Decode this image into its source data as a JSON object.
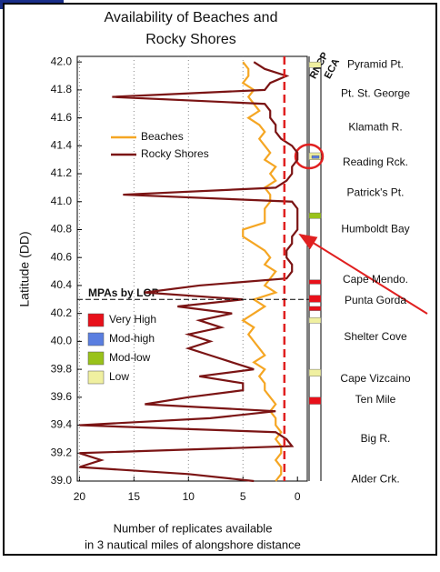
{
  "chart_data": {
    "type": "line",
    "title": [
      "Availability of Beaches and",
      "Rocky Shores"
    ],
    "y_label": "Latitude (DD)",
    "x_label": [
      "Number of replicates available",
      "in 3 nautical miles of alongshore distance"
    ],
    "xlim": [
      20.2,
      -0.9
    ],
    "ylim": [
      39.0,
      42.04
    ],
    "xticks": [
      20,
      15,
      10,
      5,
      0
    ],
    "yticks": [
      {
        "value": 42.0,
        "label": "42.0"
      },
      41.8,
      41.6,
      41.4,
      41.2,
      {
        "value": 41.0,
        "label": "41.0"
      },
      40.8,
      40.6,
      40.4,
      40.2,
      {
        "value": 40.0,
        "label": "40.0"
      },
      39.8,
      39.6,
      39.4,
      39.2,
      {
        "value": 39.0,
        "label": "39.0"
      }
    ],
    "grid": true,
    "x": [
      42.0,
      41.95,
      41.9,
      41.85,
      41.8,
      41.75,
      41.7,
      41.65,
      41.6,
      41.55,
      41.5,
      41.45,
      41.4,
      41.35,
      41.3,
      41.25,
      41.2,
      41.15,
      41.1,
      41.05,
      41.0,
      40.95,
      40.9,
      40.85,
      40.8,
      40.75,
      40.7,
      40.65,
      40.6,
      40.55,
      40.5,
      40.45,
      40.4,
      40.35,
      40.3,
      40.25,
      40.2,
      40.15,
      40.1,
      40.05,
      40.0,
      39.95,
      39.9,
      39.85,
      39.8,
      39.75,
      39.7,
      39.65,
      39.6,
      39.55,
      39.5,
      39.45,
      39.4,
      39.35,
      39.3,
      39.25,
      39.2,
      39.15,
      39.1,
      39.05,
      39.0
    ],
    "series": [
      {
        "name": "Beaches",
        "color": "#f5a623",
        "values": [
          5,
          4.5,
          4.5,
          5,
          4,
          4.5,
          4,
          3.5,
          4.5,
          3.5,
          3,
          3.5,
          3,
          2.5,
          3,
          2,
          2.5,
          2,
          3,
          2.5,
          2.5,
          3,
          3,
          3,
          5,
          5,
          4,
          3,
          2.5,
          3,
          2,
          2.5,
          3,
          2,
          4,
          3,
          4,
          5,
          4,
          4.5,
          4,
          3.5,
          3,
          4,
          3,
          3.5,
          3,
          3,
          2.5,
          2,
          2.5,
          2,
          2,
          1.5,
          2,
          1.5,
          1.5,
          2,
          1.5,
          1.5,
          2
        ]
      },
      {
        "name": "Rocky Shores",
        "color": "#7b1414",
        "values": [
          4,
          3,
          1,
          2.5,
          3,
          17,
          3,
          2.5,
          2.5,
          2,
          2,
          1.5,
          0.5,
          0,
          0,
          0.5,
          0.5,
          1,
          2,
          16,
          0.5,
          0,
          0,
          0,
          0,
          0.5,
          0.5,
          1,
          1,
          0.5,
          0.5,
          1,
          9,
          14,
          5,
          11,
          6,
          9,
          7,
          10,
          8,
          10,
          8,
          6,
          4,
          9,
          5,
          5,
          10,
          14,
          2,
          8,
          20,
          2,
          1,
          0.5,
          20,
          18,
          20,
          10,
          4
        ]
      }
    ],
    "reference_line": {
      "value": 1.2,
      "color": "#e02020"
    },
    "divider_lat": 40.3,
    "column_labels": [
      "RNCP",
      "ECA"
    ],
    "mpa_legend_title": "MPAs by LOP",
    "mpa_levels": [
      {
        "name": "Very High",
        "color": "#e8101a"
      },
      {
        "name": "Mod-high",
        "color": "#5a7ee0"
      },
      {
        "name": "Mod-low",
        "color": "#99c21a"
      },
      {
        "name": "Low",
        "color": "#f0f0a0"
      }
    ],
    "mpas": [
      {
        "level": "Low",
        "top": 42.0,
        "bottom": 41.96
      },
      {
        "level": "Low",
        "top": 41.35,
        "bottom": 41.3
      },
      {
        "level": "Mod-high",
        "top": 41.33,
        "bottom": 41.31
      },
      {
        "level": "Mod-low",
        "top": 40.92,
        "bottom": 40.88
      },
      {
        "level": "Very High",
        "top": 40.44,
        "bottom": 40.41
      },
      {
        "level": "Very High",
        "top": 40.33,
        "bottom": 40.28
      },
      {
        "level": "Very High",
        "top": 40.25,
        "bottom": 40.22
      },
      {
        "level": "Low",
        "top": 40.17,
        "bottom": 40.13
      },
      {
        "level": "Low",
        "top": 39.8,
        "bottom": 39.75
      },
      {
        "level": "Very High",
        "top": 39.6,
        "bottom": 39.55
      }
    ],
    "places": [
      {
        "name": "Pyramid Pt.",
        "lat": 41.98
      },
      {
        "name": "Pt. St. George",
        "lat": 41.77
      },
      {
        "name": "Klamath R.",
        "lat": 41.53
      },
      {
        "name": "Reading Rck.",
        "lat": 41.28
      },
      {
        "name": "Patrick's Pt.",
        "lat": 41.06
      },
      {
        "name": "Humboldt Bay",
        "lat": 40.8
      },
      {
        "name": "Cape Mendo.",
        "lat": 40.44
      },
      {
        "name": "Punta Gorda",
        "lat": 40.29
      },
      {
        "name": "Shelter Cove",
        "lat": 40.03
      },
      {
        "name": "Cape Vizcaino",
        "lat": 39.73
      },
      {
        "name": "Ten Mile",
        "lat": 39.58
      },
      {
        "name": "Big R.",
        "lat": 39.3
      },
      {
        "name": "Alder Crk.",
        "lat": 39.01
      }
    ]
  }
}
